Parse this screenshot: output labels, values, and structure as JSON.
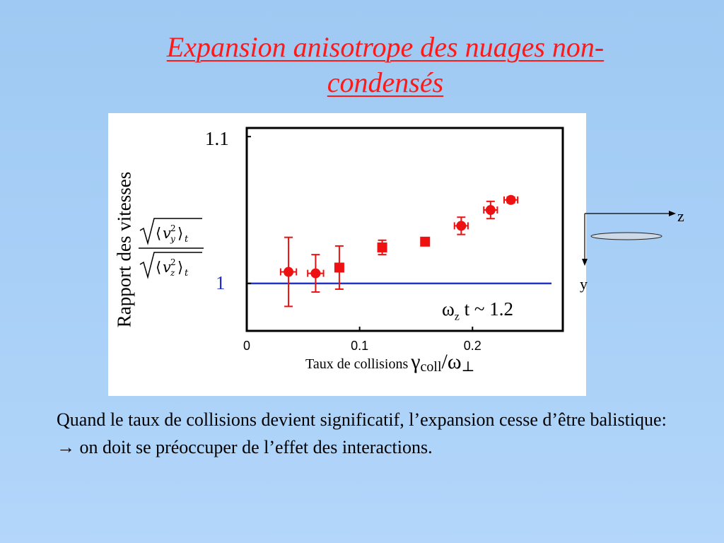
{
  "slide": {
    "title_line1": "Expansion anisotrope des nuages non-",
    "title_line2": "condensés",
    "body_line1": "Quand le taux de collisions devient significatif, l’expansion cesse d’être balistique:",
    "body_line2_arrow": "→",
    "body_line2_text": " on doit se préoccuper de l’effet des interactions."
  },
  "axes_diagram": {
    "z_label": "z",
    "y_label": "y"
  },
  "chart_data": {
    "type": "scatter",
    "ylabel": "Rapport des vitesses",
    "ylabel_formula": "√⟨v_y²⟩_t / √⟨v_z²⟩_t",
    "xlabel_prefix": "Taux de collisions",
    "xlabel_gamma": "γ",
    "xlabel_sub": "coll",
    "xlabel_slash_omega": "/ω",
    "xlabel_perp": "⊥",
    "annotation_omega": "ω",
    "annotation_sub": "z",
    "annotation_rest": " t ~ 1.2",
    "ytick_top": "1.1",
    "ytick_ref": "1",
    "xticks": [
      {
        "v": 0,
        "label": "0"
      },
      {
        "v": 0.1,
        "label": "0.1"
      },
      {
        "v": 0.2,
        "label": "0.2"
      }
    ],
    "xlim": [
      0,
      0.28
    ],
    "ylim": [
      0.967,
      1.108
    ],
    "reference_line": 1.0,
    "colors": {
      "points": "#ee1111",
      "reference": "#2233cc",
      "frame": "#000000"
    },
    "points": [
      {
        "x": 0.037,
        "y": 1.008,
        "yerr": 0.024,
        "xerr": 0.007,
        "marker": "circle"
      },
      {
        "x": 0.061,
        "y": 1.007,
        "yerr": 0.013,
        "xerr": 0.007,
        "marker": "circle"
      },
      {
        "x": 0.082,
        "y": 1.011,
        "yerr": 0.015,
        "xerr": 0.0,
        "marker": "square"
      },
      {
        "x": 0.12,
        "y": 1.025,
        "yerr": 0.005,
        "xerr": 0.0,
        "marker": "square"
      },
      {
        "x": 0.158,
        "y": 1.029,
        "yerr": 0.002,
        "xerr": 0.0,
        "marker": "square"
      },
      {
        "x": 0.19,
        "y": 1.04,
        "yerr": 0.006,
        "xerr": 0.006,
        "marker": "circle"
      },
      {
        "x": 0.216,
        "y": 1.051,
        "yerr": 0.006,
        "xerr": 0.006,
        "marker": "circle"
      },
      {
        "x": 0.234,
        "y": 1.058,
        "yerr": 0.002,
        "xerr": 0.006,
        "marker": "circle"
      }
    ]
  }
}
